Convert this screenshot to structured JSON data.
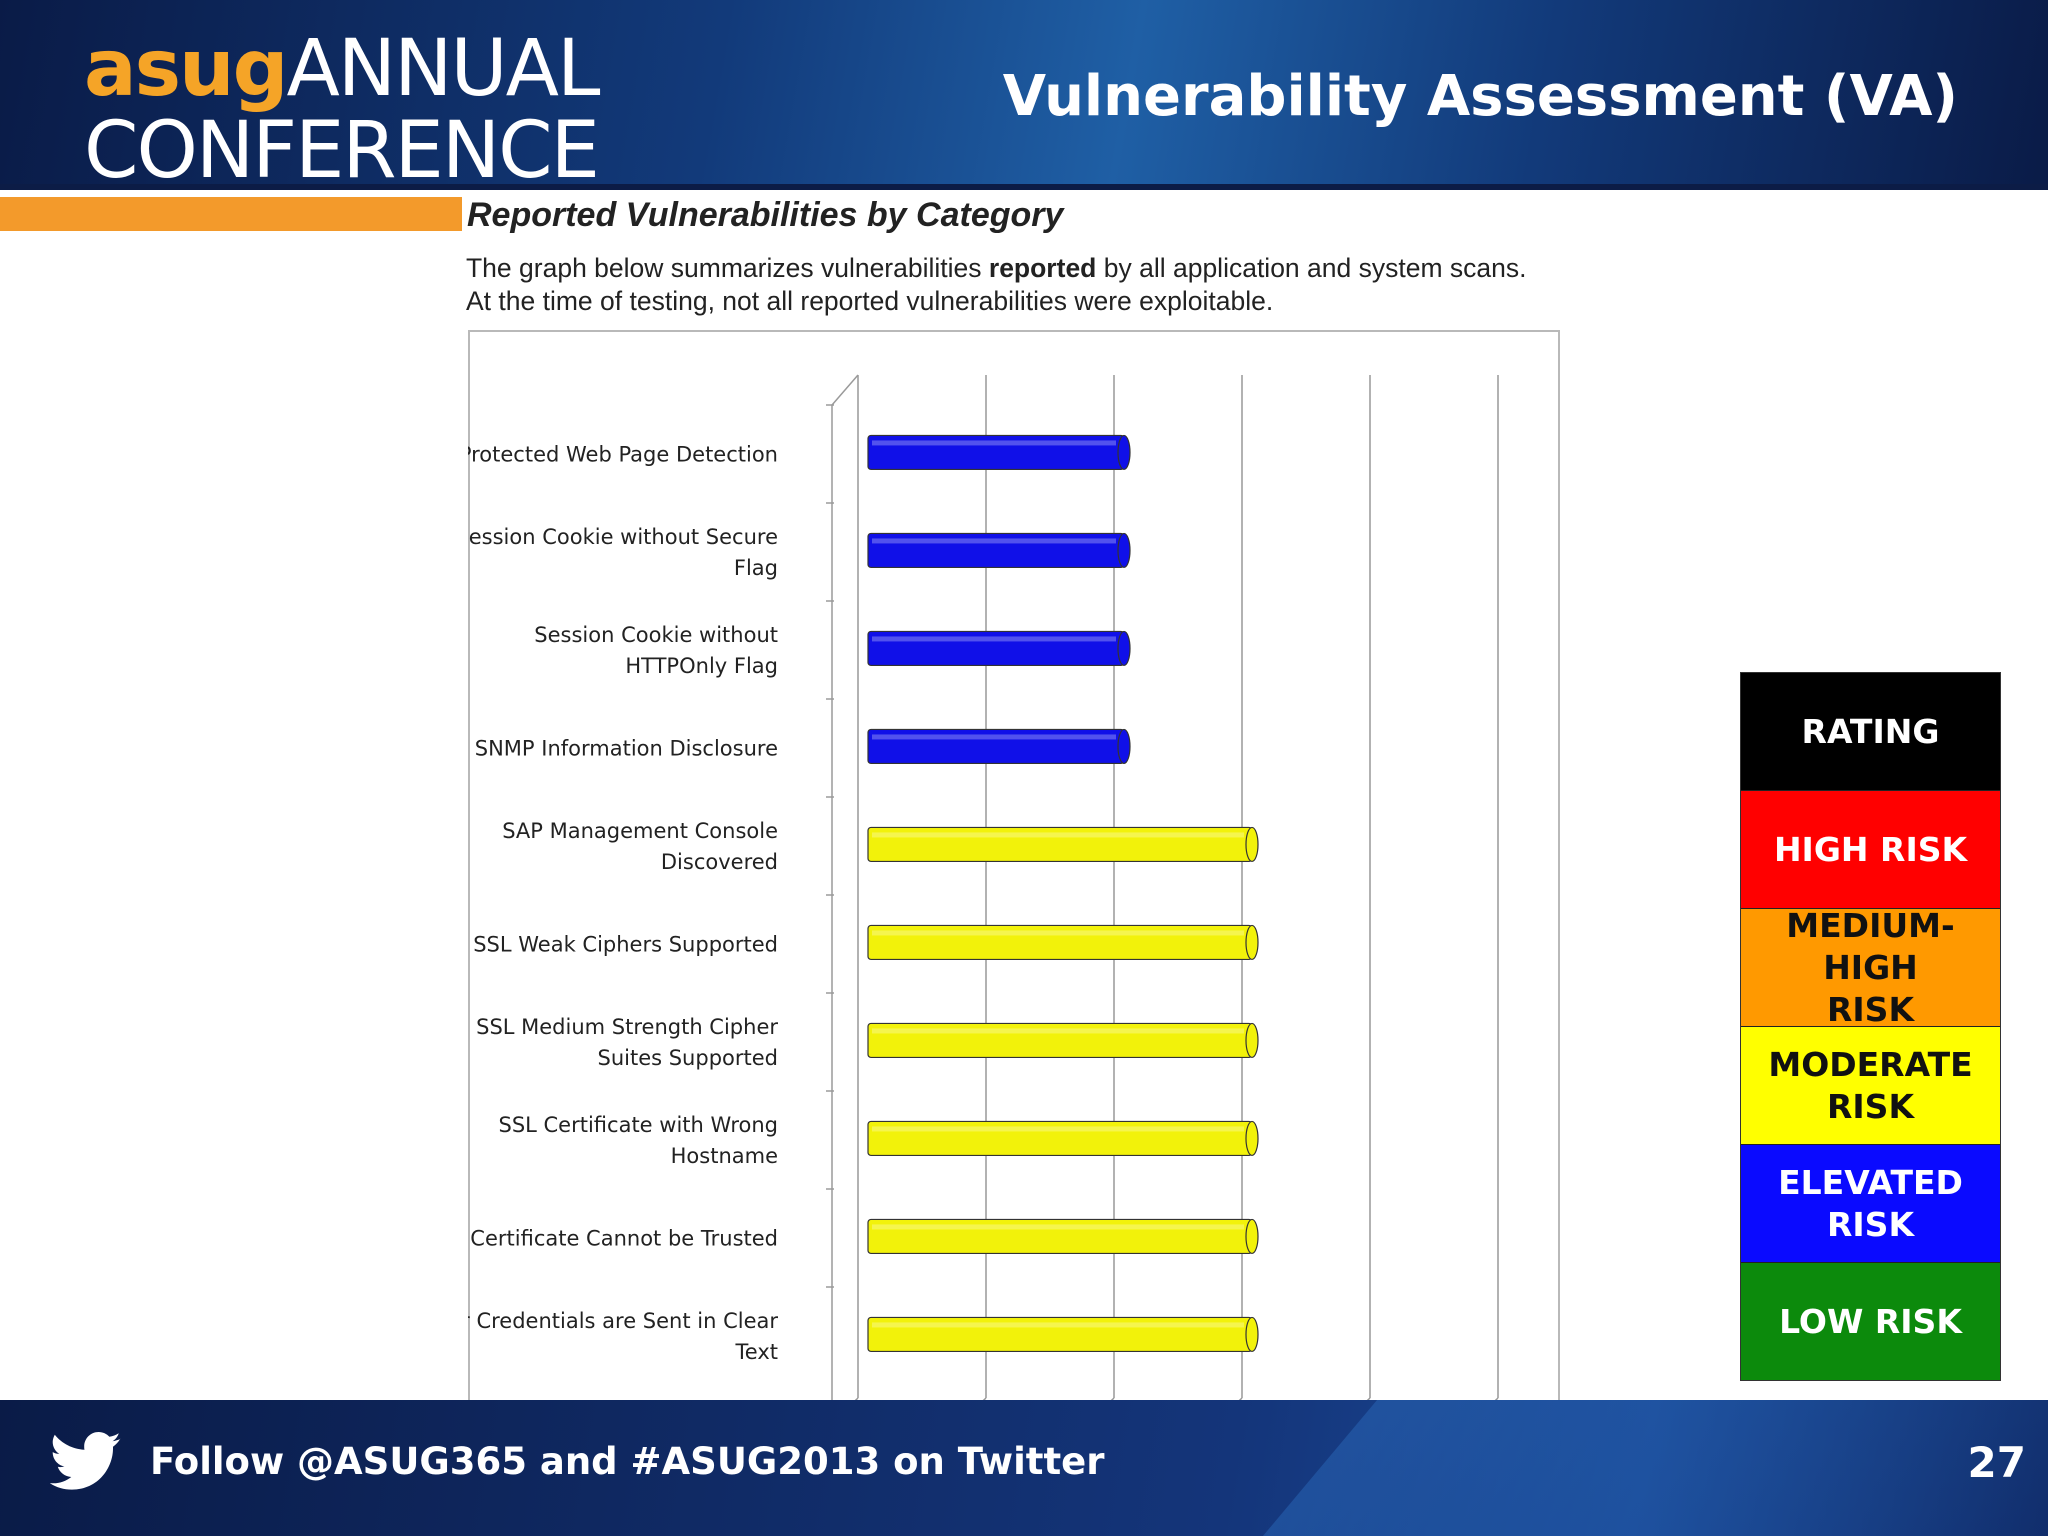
{
  "header": {
    "logo_asug": "asug",
    "logo_annual": "ANNUAL",
    "logo_conference": "CONFERENCE",
    "title": "Vulnerability Assessment (VA)"
  },
  "report": {
    "heading": "Reported Vulnerabilities by Category",
    "desc_part1": "The graph below summarizes vulnerabilities ",
    "desc_bold": "reported",
    "desc_part2": " by all application and system scans.",
    "desc_line2": "At the time of testing, not all reported vulnerabilities were exploitable."
  },
  "chart_data": {
    "type": "bar",
    "orientation": "horizontal",
    "title": "",
    "xlabel": "",
    "ylabel": "",
    "grid": true,
    "categories": [
      "Protected Web Page Detection",
      "Session Cookie without Secure Flag",
      "Session Cookie without HTTPOnly Flag",
      "SNMP Information Disclosure",
      "SAP Management Console Discovered",
      "SSL Weak Ciphers Supported",
      "SSL Medium Strength Cipher Suites Supported",
      "SSL Certificate with Wrong Hostname",
      "SSL Certificate Cannot be Trusted",
      "User Credentials are Sent in Clear Text"
    ],
    "category_labels": [
      [
        "Protected Web Page Detection"
      ],
      [
        "Session Cookie without Secure",
        "Flag"
      ],
      [
        "Session Cookie without",
        "HTTPOnly Flag"
      ],
      [
        "SNMP Information Disclosure"
      ],
      [
        "SAP Management Console",
        "Discovered"
      ],
      [
        "SSL Weak Ciphers Supported"
      ],
      [
        "SSL Medium Strength Cipher",
        "Suites Supported"
      ],
      [
        "SSL Certificate with Wrong",
        "Hostname"
      ],
      [
        "SSL Certificate Cannot be Trusted"
      ],
      [
        "User Credentials are Sent in Clear",
        "Text"
      ]
    ],
    "values": [
      2,
      2,
      2,
      2,
      3,
      3,
      3,
      3,
      3,
      3
    ],
    "xlim": [
      0,
      5
    ],
    "bar_colors": [
      "#1010e8",
      "#1010e8",
      "#1010e8",
      "#1010e8",
      "#f2f20a",
      "#f2f20a",
      "#f2f20a",
      "#f2f20a",
      "#f2f20a",
      "#f2f20a"
    ]
  },
  "rating": {
    "items": [
      {
        "label": "RATING",
        "bg": "#000000",
        "color": "#ffffff"
      },
      {
        "label": "HIGH RISK",
        "bg": "#ff0000",
        "color": "#ffffff"
      },
      {
        "label": "MEDIUM-HIGH\nRISK",
        "bg": "#ff9900",
        "color": "#111111"
      },
      {
        "label": "MODERATE\nRISK",
        "bg": "#ffff00",
        "color": "#111111"
      },
      {
        "label": "ELEVATED RISK",
        "bg": "#0a0aff",
        "color": "#ffffff"
      },
      {
        "label": "LOW RISK",
        "bg": "#0c8a0c",
        "color": "#ffffff"
      }
    ]
  },
  "footer": {
    "icon": "twitter-bird-icon",
    "follow_text": "Follow @ASUG365 and #ASUG2013 on Twitter",
    "page_number": "27"
  }
}
